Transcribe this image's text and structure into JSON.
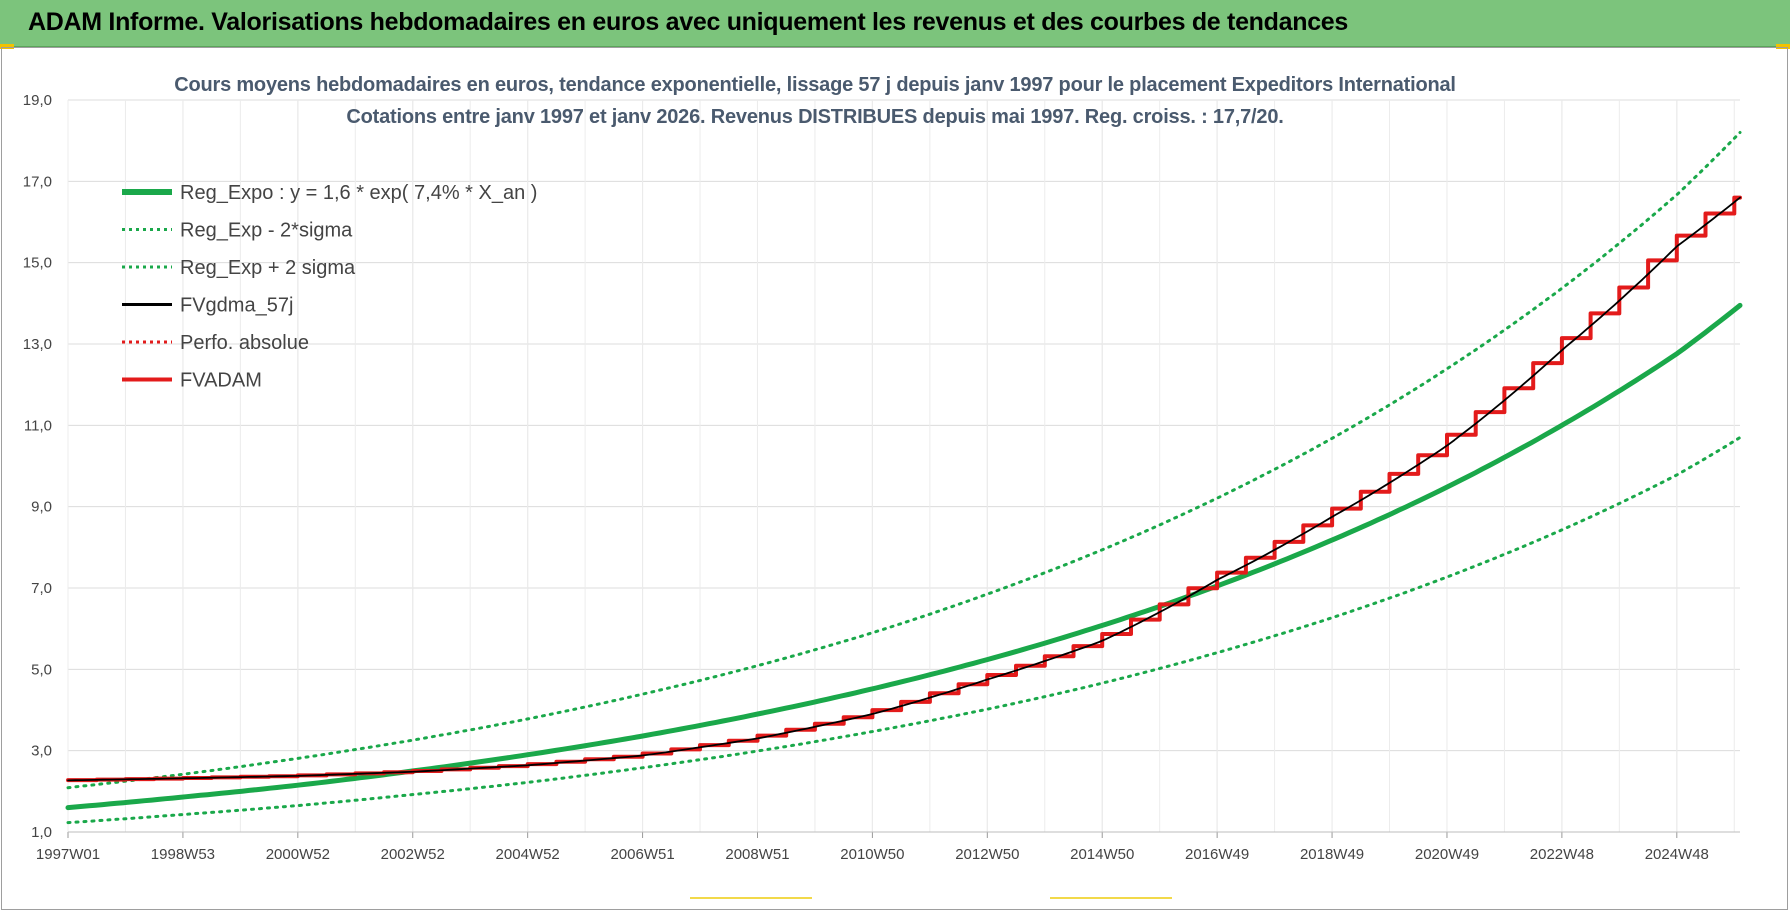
{
  "header": {
    "title": "ADAM Informe. Valorisations hebdomadaires en euros avec uniquement les revenus et des courbes de tendances"
  },
  "chart_data": {
    "type": "line",
    "title_line1": "Cours moyens hebdomadaires en euros, tendance exponentielle, lissage 57 j depuis janv 1997  pour le placement Expeditors International",
    "title_line2": "Cotations entre janv 1997 et janv 2026. Revenus DISTRIBUES depuis mai 1997.  Reg. croiss. : 17,7/20.",
    "x_range": [
      1997.0,
      2026.1
    ],
    "x_tick_labels": [
      "1997W01",
      "1998W53",
      "2000W52",
      "2002W52",
      "2004W52",
      "2006W51",
      "2008W51",
      "2010W50",
      "2012W50",
      "2014W50",
      "2016W49",
      "2018W49",
      "2020W49",
      "2022W48",
      "2024W48"
    ],
    "y_range": [
      1.0,
      19.0
    ],
    "y_tick_labels": [
      "1,0",
      "3,0",
      "5,0",
      "7,0",
      "9,0",
      "11,0",
      "13,0",
      "15,0",
      "17,0",
      "19,0"
    ],
    "grid": true,
    "legend_position": "top-left",
    "series": [
      {
        "name": "Reg_Expo : y = 1,6 * exp( 7,4% *  X_an )",
        "color": "#1aa84a",
        "style": "solid",
        "x": [
          1997,
          1999,
          2001,
          2003,
          2005,
          2007,
          2009,
          2011,
          2013,
          2015,
          2017,
          2019,
          2021,
          2023,
          2025,
          2026.1
        ],
        "y": [
          1.6,
          1.86,
          2.15,
          2.5,
          2.9,
          3.36,
          3.9,
          4.52,
          5.24,
          6.08,
          7.05,
          8.18,
          9.48,
          11.0,
          12.76,
          13.95
        ]
      },
      {
        "name": "Reg_Exp - 2*sigma",
        "color": "#1aa84a",
        "style": "dotted",
        "x": [
          1997,
          1999,
          2001,
          2003,
          2005,
          2007,
          2009,
          2011,
          2013,
          2015,
          2017,
          2019,
          2021,
          2023,
          2025,
          2026.1
        ],
        "y": [
          1.23,
          1.43,
          1.65,
          1.92,
          2.22,
          2.58,
          2.99,
          3.47,
          4.02,
          4.66,
          5.41,
          6.27,
          7.27,
          8.43,
          9.78,
          10.7
        ]
      },
      {
        "name": "Reg_Exp + 2 sigma",
        "color": "#1aa84a",
        "style": "dotted",
        "x": [
          1997,
          1999,
          2001,
          2003,
          2005,
          2007,
          2009,
          2011,
          2013,
          2015,
          2017,
          2019,
          2021,
          2023,
          2025,
          2026.1
        ],
        "y": [
          2.09,
          2.42,
          2.81,
          3.26,
          3.78,
          4.39,
          5.09,
          5.9,
          6.85,
          7.94,
          9.21,
          10.68,
          12.39,
          14.37,
          16.67,
          18.2
        ]
      },
      {
        "name": "FVgdma_57j",
        "color": "#000000",
        "style": "solid",
        "x": [
          1997,
          1999,
          2001,
          2003,
          2005,
          2007,
          2009,
          2011,
          2013,
          2015,
          2017,
          2019,
          2021,
          2023,
          2025,
          2026.1
        ],
        "y": [
          2.27,
          2.32,
          2.38,
          2.48,
          2.64,
          2.88,
          3.3,
          3.9,
          4.75,
          5.7,
          7.2,
          8.75,
          10.5,
          12.85,
          15.4,
          16.6
        ]
      },
      {
        "name": "Perfo. absolue",
        "color": "#e31b1b",
        "style": "dotted",
        "x": [],
        "y": []
      },
      {
        "name": "FVADAM",
        "color": "#e31b1b",
        "style": "step",
        "x": [
          1997,
          1999,
          2001,
          2003,
          2005,
          2007,
          2009,
          2011,
          2013,
          2015,
          2017,
          2019,
          2021,
          2023,
          2025,
          2026.1
        ],
        "y": [
          2.27,
          2.32,
          2.38,
          2.48,
          2.64,
          2.88,
          3.3,
          3.9,
          4.75,
          5.7,
          7.2,
          8.75,
          10.5,
          12.85,
          15.4,
          16.6
        ]
      }
    ]
  }
}
